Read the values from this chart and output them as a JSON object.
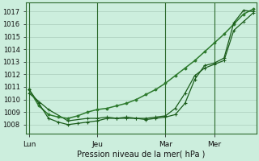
{
  "background_color": "#cceedd",
  "grid_color": "#aaccbb",
  "line_color1": "#1a5c1a",
  "line_color2": "#2d7a2d",
  "line_color3": "#1a5c1a",
  "xlabel": "Pression niveau de la mer( hPa )",
  "ylim": [
    1007.3,
    1017.7
  ],
  "yticks": [
    1008,
    1009,
    1010,
    1011,
    1012,
    1013,
    1014,
    1015,
    1016,
    1017
  ],
  "xtick_labels": [
    "Lun",
    "Jeu",
    "Mar",
    "Mer"
  ],
  "xtick_positions": [
    0,
    7,
    14,
    19
  ],
  "total_points": 24,
  "series1_x": [
    0,
    1,
    2,
    3,
    4,
    5,
    6,
    7,
    8,
    9,
    10,
    11,
    12,
    13,
    14,
    15,
    16,
    17,
    18,
    19,
    20,
    21,
    22,
    23
  ],
  "series1_y": [
    1010.8,
    1009.7,
    1008.5,
    1008.2,
    1008.0,
    1008.1,
    1008.2,
    1008.3,
    1008.5,
    1008.5,
    1008.6,
    1008.5,
    1008.4,
    1008.5,
    1008.6,
    1008.8,
    1009.7,
    1011.6,
    1012.7,
    1012.9,
    1013.3,
    1016.1,
    1017.1,
    1017.0
  ],
  "series2_x": [
    0,
    1,
    2,
    3,
    4,
    5,
    6,
    7,
    8,
    9,
    10,
    11,
    12,
    13,
    14,
    15,
    16,
    17,
    18,
    19,
    20,
    21,
    22,
    23
  ],
  "series2_y": [
    1010.8,
    1009.5,
    1008.8,
    1008.6,
    1008.5,
    1008.7,
    1009.0,
    1009.2,
    1009.3,
    1009.5,
    1009.7,
    1010.0,
    1010.4,
    1010.8,
    1011.3,
    1011.9,
    1012.5,
    1013.1,
    1013.8,
    1014.5,
    1015.2,
    1016.0,
    1016.8,
    1017.2
  ],
  "series3_x": [
    0,
    2,
    4,
    6,
    7,
    8,
    9,
    10,
    11,
    12,
    13,
    14,
    15,
    16,
    17,
    18,
    19,
    20,
    21,
    22,
    23
  ],
  "series3_y": [
    1010.5,
    1009.2,
    1008.3,
    1008.5,
    1008.5,
    1008.6,
    1008.5,
    1008.5,
    1008.5,
    1008.5,
    1008.6,
    1008.7,
    1009.3,
    1010.5,
    1011.9,
    1012.5,
    1012.8,
    1013.1,
    1015.5,
    1016.2,
    1016.9
  ],
  "vline_positions": [
    0,
    7,
    14,
    19
  ],
  "vline_color": "#2d6a2d"
}
